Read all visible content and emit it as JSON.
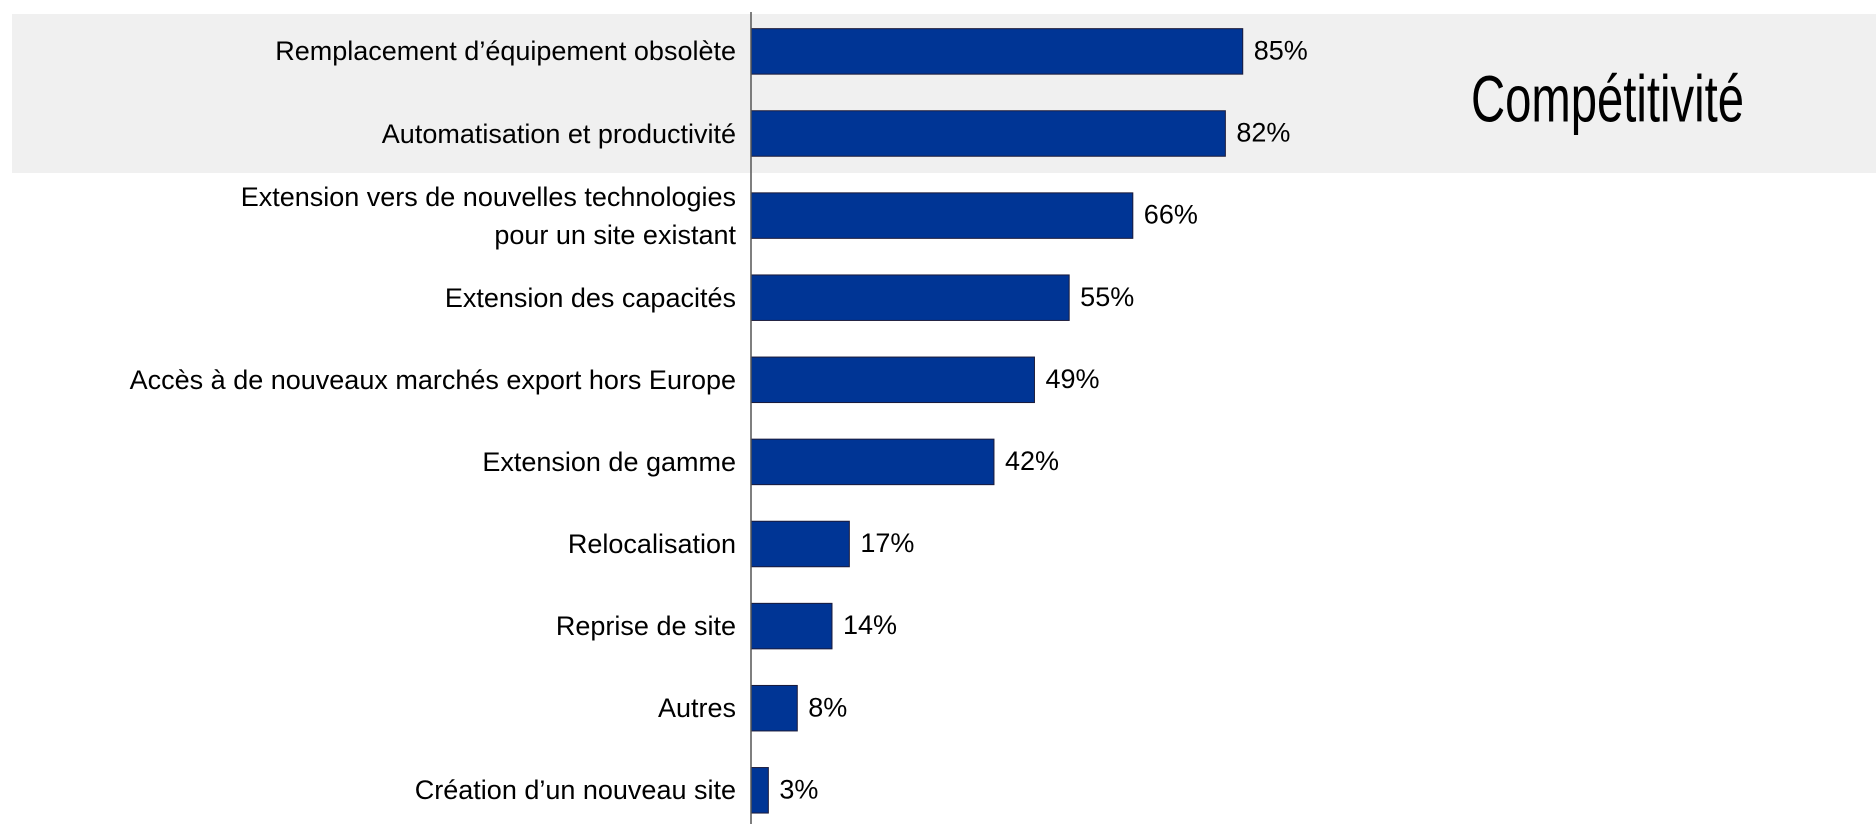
{
  "chart_data": {
    "type": "bar",
    "orientation": "horizontal",
    "categories": [
      "Remplacement d’équipement obsolète",
      "Automatisation et productivité",
      "Extension vers de nouvelles technologies\npour un site existant",
      "Extension des capacités",
      "Accès à de nouveaux marchés export hors Europe",
      "Extension de gamme",
      "Relocalisation",
      "Reprise de site",
      "Autres",
      "Création d’un nouveau site"
    ],
    "values": [
      85,
      82,
      66,
      55,
      49,
      42,
      17,
      14,
      8,
      3
    ],
    "value_labels": [
      "85%",
      "82%",
      "66%",
      "55%",
      "49%",
      "42%",
      "17%",
      "14%",
      "8%",
      "3%"
    ],
    "color": "#003595",
    "xlim": [
      0,
      100
    ],
    "annotations": [
      {
        "text": "Compétitivité",
        "color": "#003595"
      }
    ]
  }
}
